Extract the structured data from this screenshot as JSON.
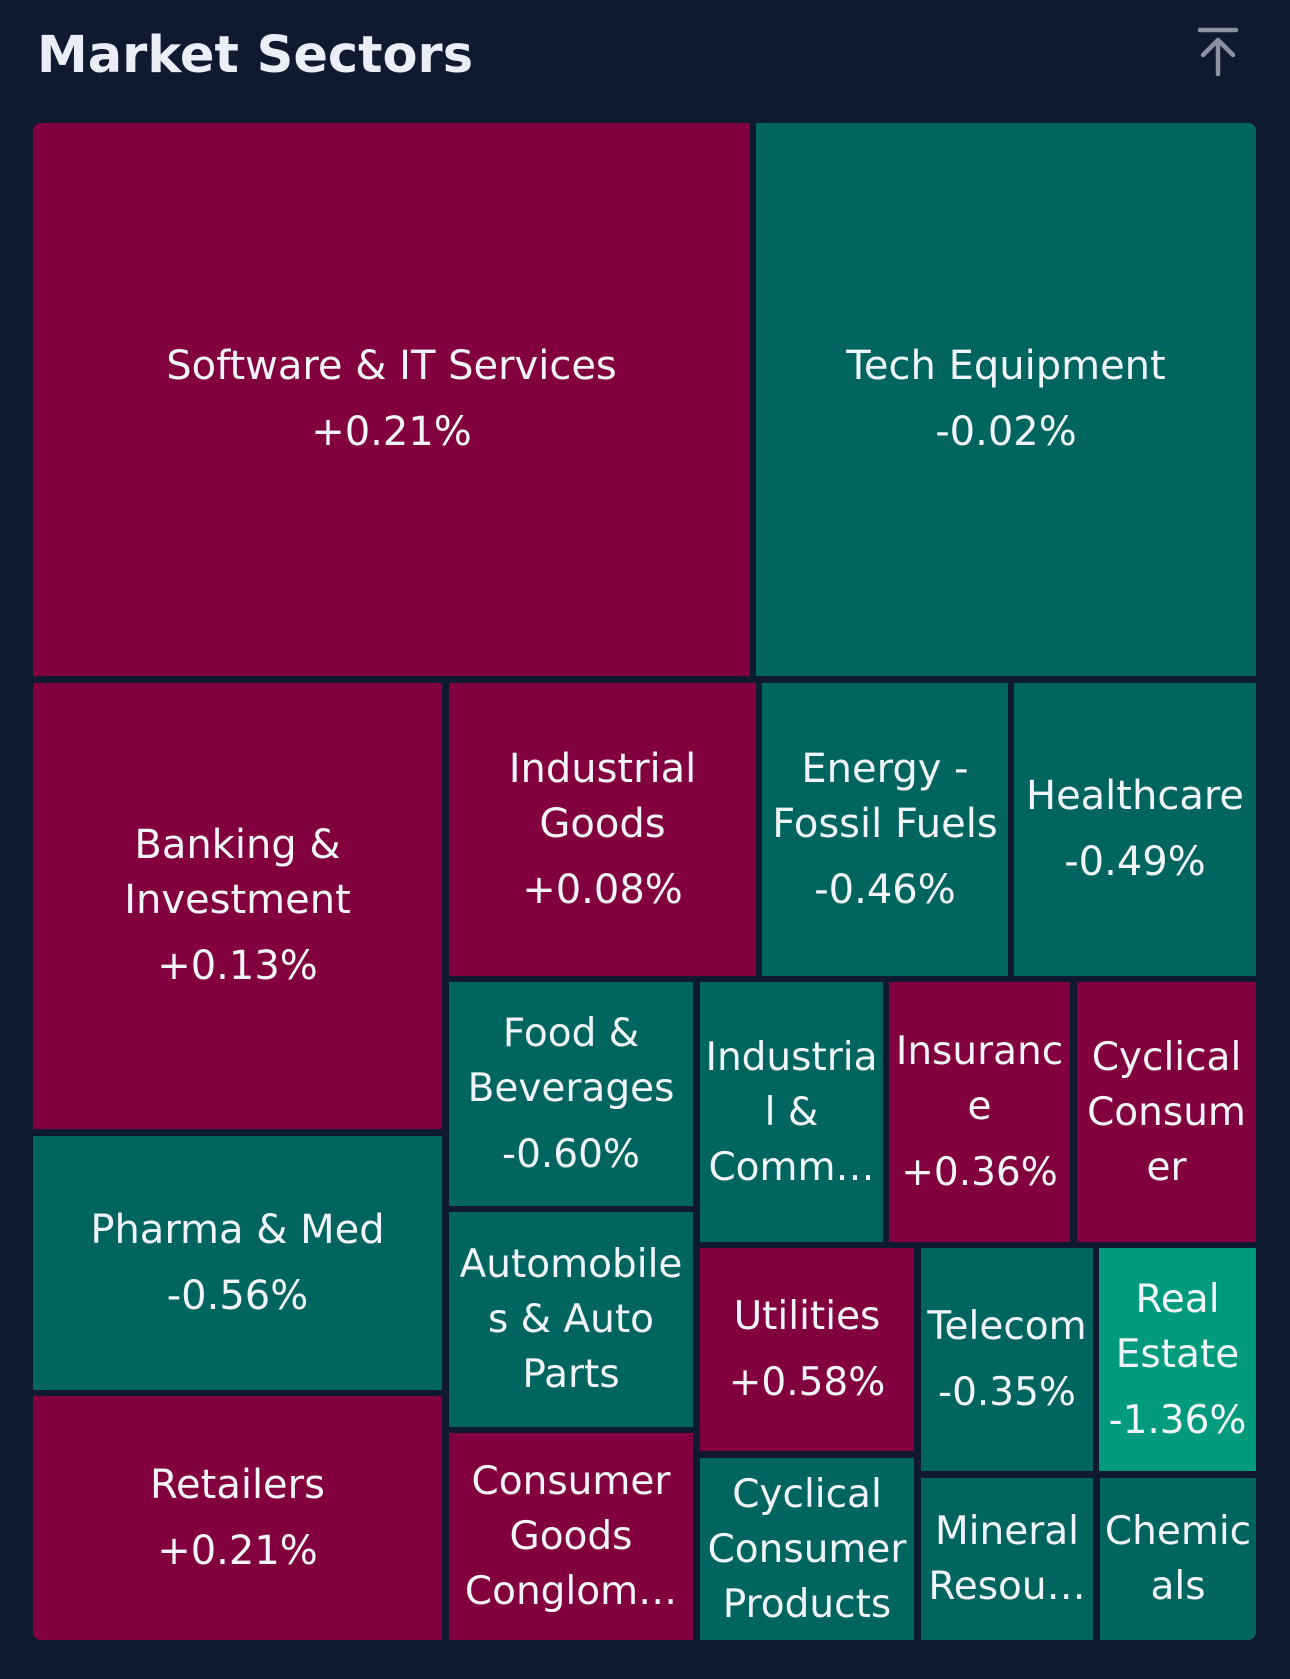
{
  "header": {
    "title": "Market Sectors",
    "scroll_top_icon": "arrow-up-to-line-icon"
  },
  "colors": {
    "background": "#0f1a30",
    "positive": "#83003f",
    "negative": "#00655e",
    "strong_negative": "#009a7c"
  },
  "sectors": [
    {
      "name": "Software & IT Services",
      "change": "+0.21%"
    },
    {
      "name": "Tech Equipment",
      "change": "-0.02%"
    },
    {
      "name": "Banking &\nInvestment",
      "change": "+0.13%"
    },
    {
      "name": "Industrial\nGoods",
      "change": "+0.08%"
    },
    {
      "name": "Energy -\nFossil Fuels",
      "change": "-0.46%"
    },
    {
      "name": "Healthcare",
      "change": "-0.49%"
    },
    {
      "name": "Food &\nBeverages",
      "change": "-0.60%"
    },
    {
      "name": "Industria\nl &\nComm…",
      "change": ""
    },
    {
      "name": "Insuranc\ne",
      "change": "+0.36%"
    },
    {
      "name": "Cyclical\nConsum\ner",
      "change": ""
    },
    {
      "name": "Pharma & Med",
      "change": "-0.56%"
    },
    {
      "name": "Automobile\ns & Auto\nParts",
      "change": ""
    },
    {
      "name": "Utilities",
      "change": "+0.58%"
    },
    {
      "name": "Telecom",
      "change": "-0.35%"
    },
    {
      "name": "Real\nEstate",
      "change": "-1.36%"
    },
    {
      "name": "Retailers",
      "change": "+0.21%"
    },
    {
      "name": "Consumer\nGoods\nConglom…",
      "change": ""
    },
    {
      "name": "Cyclical\nConsumer\nProducts",
      "change": ""
    },
    {
      "name": "Mineral\nResou…",
      "change": ""
    },
    {
      "name": "Chemic\nals",
      "change": ""
    }
  ]
}
